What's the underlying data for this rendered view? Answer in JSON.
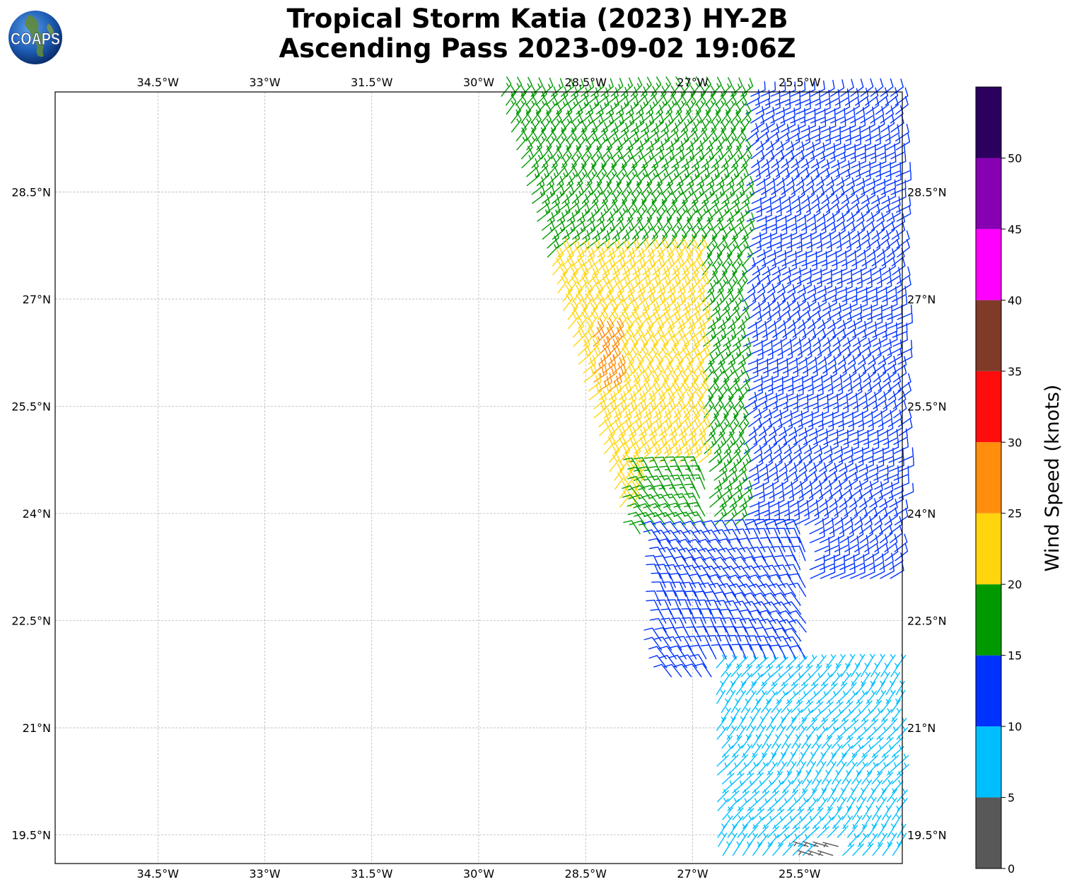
{
  "title": {
    "line1": "Tropical Storm Katia (2023) HY-2B",
    "line2": "Ascending Pass 2023-09-02 19:06Z"
  },
  "logo": {
    "text": "COAPS",
    "icon": "globe-logo-icon"
  },
  "map": {
    "lon_ticks": [
      "34.5°W",
      "33°W",
      "31.5°W",
      "30°W",
      "28.5°W",
      "27°W",
      "25.5°W"
    ],
    "lat_ticks": [
      "28.5°N",
      "27°N",
      "25.5°N",
      "24°N",
      "22.5°N",
      "21°N",
      "19.5°N"
    ],
    "lon_range": [
      -35.94,
      -24.06
    ],
    "lat_range": [
      19.1,
      29.9
    ],
    "grid": true
  },
  "chart_data": {
    "type": "wind-barbs",
    "colorbar": {
      "label": "Wind Speed (knots)",
      "ticks": [
        "0",
        "5",
        "10",
        "15",
        "20",
        "25",
        "30",
        "35",
        "40",
        "45",
        "50"
      ],
      "bins": [
        {
          "range": [
            0,
            5
          ],
          "color": "#585858"
        },
        {
          "range": [
            5,
            10
          ],
          "color": "#00bfff"
        },
        {
          "range": [
            10,
            15
          ],
          "color": "#0032ff"
        },
        {
          "range": [
            15,
            20
          ],
          "color": "#009a00"
        },
        {
          "range": [
            20,
            25
          ],
          "color": "#ffd60d"
        },
        {
          "range": [
            25,
            30
          ],
          "color": "#ff8e0d"
        },
        {
          "range": [
            30,
            35
          ],
          "color": "#ff0d0d"
        },
        {
          "range": [
            35,
            40
          ],
          "color": "#7f3a28"
        },
        {
          "range": [
            40,
            45
          ],
          "color": "#ff00ff"
        },
        {
          "range": [
            45,
            50
          ],
          "color": "#8800b3"
        },
        {
          "range": [
            50,
            55
          ],
          "color": "#2b005e"
        }
      ]
    },
    "regions": [
      {
        "speed_knots": 17,
        "lat": [
          26.4,
          29.9
        ],
        "lon": [
          -29.7,
          -26.3
        ],
        "direction_deg": 45
      },
      {
        "speed_knots": 17,
        "lat": [
          22.8,
          26.4
        ],
        "lon": [
          -27.0,
          -25.3
        ],
        "direction_deg": 45
      },
      {
        "speed_knots": 12,
        "lat": [
          23.0,
          29.9
        ],
        "lon": [
          -26.3,
          -24.1
        ],
        "direction_deg": 60
      },
      {
        "speed_knots": 22,
        "lat": [
          24.0,
          27.7
        ],
        "lon": [
          -29.0,
          -26.9
        ],
        "direction_deg": 45
      },
      {
        "speed_knots": 27,
        "lat": [
          25.6,
          26.5
        ],
        "lon": [
          -28.4,
          -28.1
        ],
        "direction_deg": 50
      },
      {
        "speed_knots": 17,
        "lat": [
          23.6,
          24.6
        ],
        "lon": [
          -27.8,
          -26.8
        ],
        "direction_deg": 330
      },
      {
        "speed_knots": 12,
        "lat": [
          21.7,
          23.8
        ],
        "lon": [
          -27.5,
          -25.4
        ],
        "direction_deg": 330
      },
      {
        "speed_knots": 7,
        "lat": [
          19.2,
          21.9
        ],
        "lon": [
          -26.7,
          -24.1
        ],
        "direction_deg": 40
      },
      {
        "speed_knots": 3,
        "lat": [
          19.1,
          19.4
        ],
        "lon": [
          -25.4,
          -24.9
        ],
        "direction_deg": 280
      }
    ]
  }
}
